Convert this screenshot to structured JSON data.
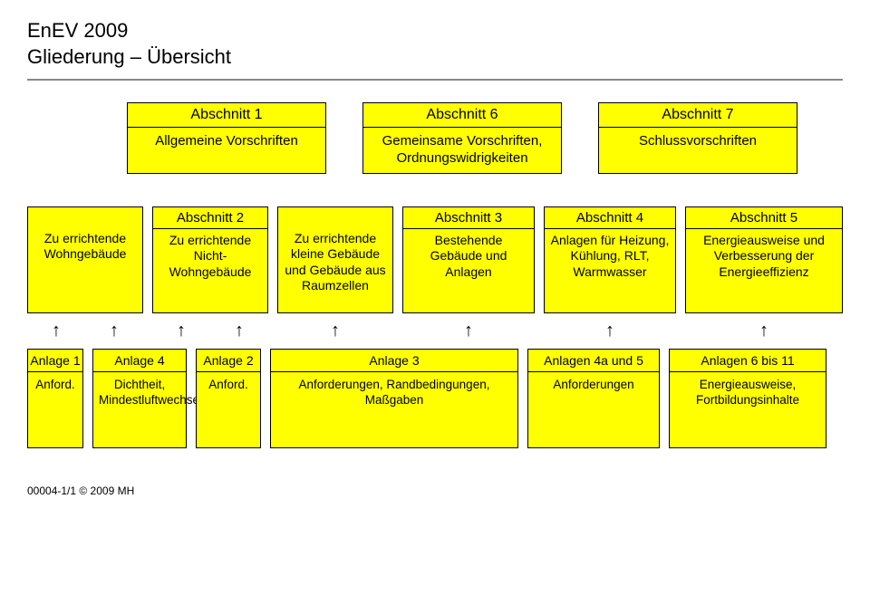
{
  "title": {
    "line1": "EnEV 2009",
    "line2": "Gliederung – Übersicht"
  },
  "topRow": [
    {
      "hdr": "Abschnitt 1",
      "txt": "Allgemeine Vorschriften"
    },
    {
      "hdr": "Abschnitt 6",
      "txt": "Gemeinsame Vorschriften, Ordnungswidrigkeiten"
    },
    {
      "hdr": "Abschnitt 7",
      "txt": "Schlussvorschriften"
    }
  ],
  "midRow": [
    {
      "hdr": "",
      "txt": "Zu errichtende Wohngebäude",
      "cls": "col-a"
    },
    {
      "hdr": "Abschnitt 2",
      "txt": "Zu errichtende Nicht-Wohngebäude",
      "cls": "col-b"
    },
    {
      "hdr": "",
      "txt": "Zu errichtende kleine Gebäude und Gebäude aus Raumzellen",
      "cls": "col-c"
    },
    {
      "hdr": "Abschnitt 3",
      "txt": "Bestehende Gebäude und Anlagen",
      "cls": "col-d"
    },
    {
      "hdr": "Abschnitt 4",
      "txt": "Anlagen für Heizung, Kühlung, RLT, Warmwasser",
      "cls": "col-e"
    },
    {
      "hdr": "Abschnitt 5",
      "txt": "Energieausweise und Verbesserung der Energieeffizienz",
      "cls": "col-f"
    }
  ],
  "arrowGlyph": "↑",
  "arrowLayout": [
    {
      "cls": "col-a",
      "split": true
    },
    {
      "cls": "col-b",
      "split": true
    },
    {
      "cls": "col-c",
      "split": false
    },
    {
      "cls": "col-d",
      "split": false
    },
    {
      "cls": "col-e",
      "split": false
    },
    {
      "cls": "col-f",
      "split": false
    }
  ],
  "botRow": [
    {
      "hdr": "Anlage 1",
      "txt": "Anford.",
      "cls": "col-a2"
    },
    {
      "hdr": "Anlage 4",
      "txt": "Dichtheit, Mindestluftwechsel",
      "cls": "col-a3"
    },
    {
      "hdr": "Anlage 2",
      "txt": "Anford.",
      "cls": "col-c2"
    },
    {
      "hdr": "Anlage 3",
      "txt": "Anforderungen, Randbedingungen, Maßgaben",
      "cls": "col-d2"
    },
    {
      "hdr": "Anlagen 4a und 5",
      "txt": "Anforderungen",
      "cls": "col-e2"
    },
    {
      "hdr": "Anlagen 6 bis 11",
      "txt": "Energieausweise, Fortbildungsinhalte",
      "cls": "col-f2"
    }
  ],
  "footer": "00004-1/1 © 2009 MH",
  "colors": {
    "box_bg": "#ffff00",
    "border": "#000000",
    "text": "#000000",
    "bg": "#ffffff"
  }
}
